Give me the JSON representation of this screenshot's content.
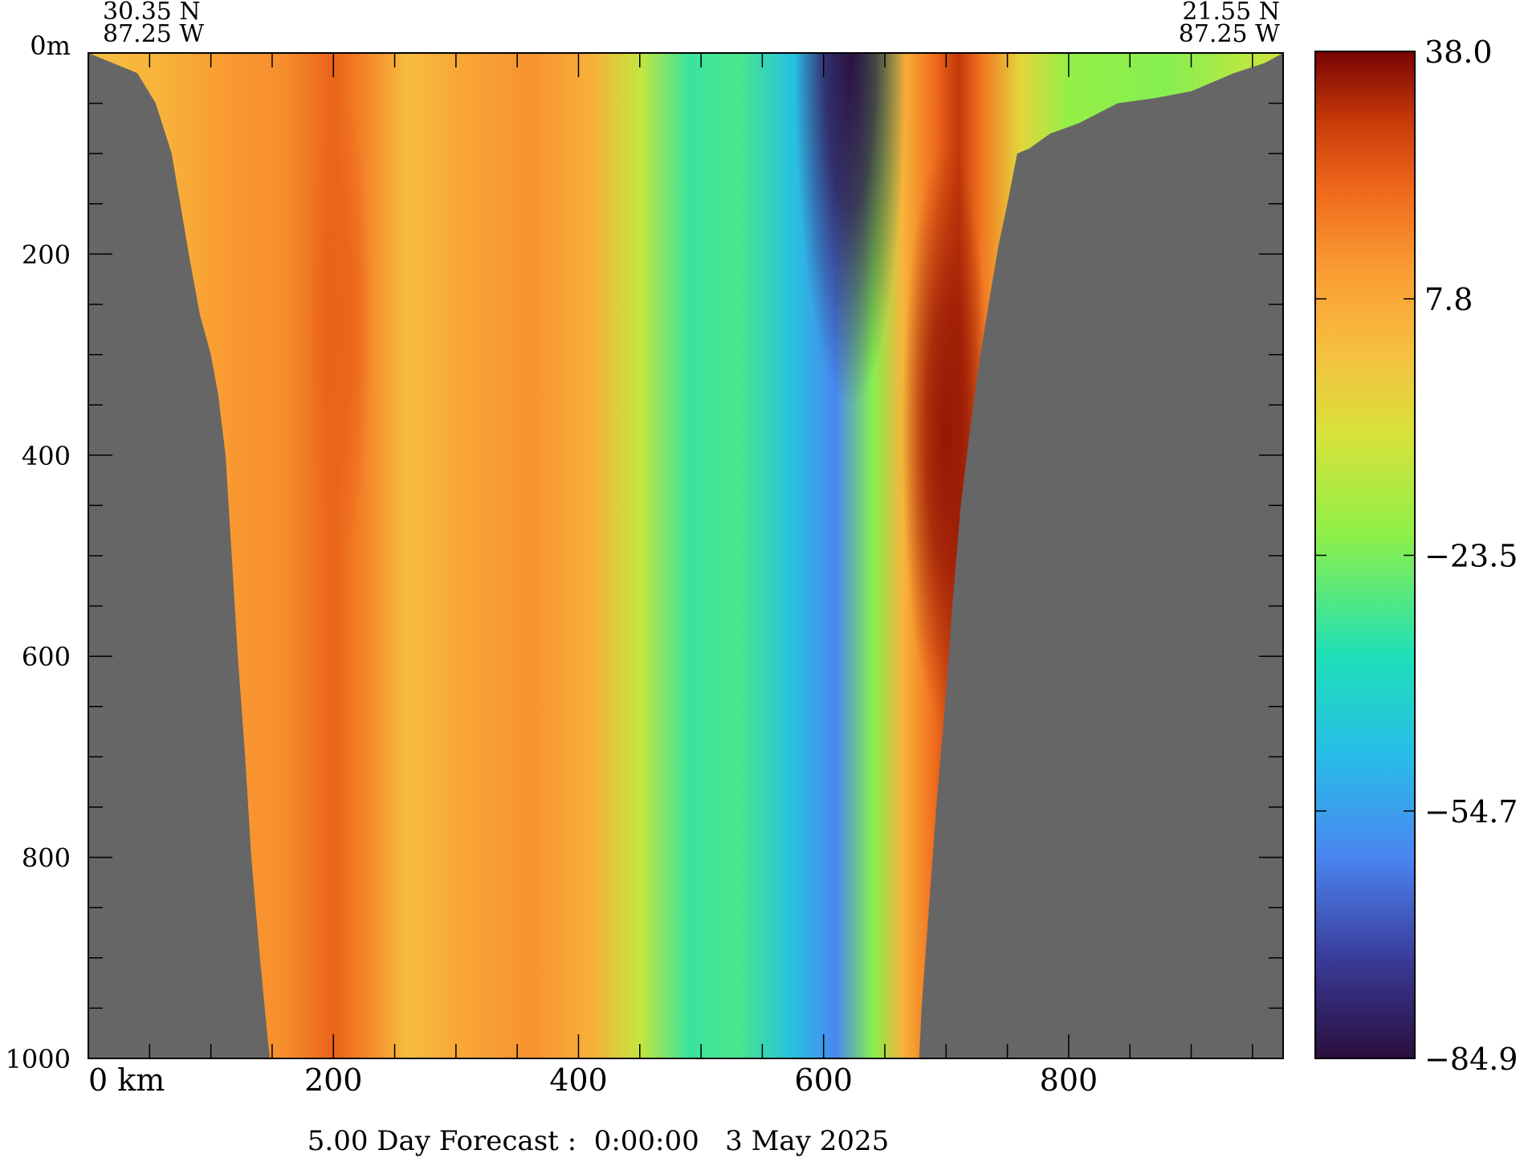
{
  "chart_data": {
    "type": "heatmap",
    "title": "",
    "caption": "5.00 Day Forecast :  0:00:00   3 May 2025",
    "start_location": {
      "lat": "30.35 N",
      "lon": "87.25 W"
    },
    "end_location": {
      "lat": "21.55 N",
      "lon": "87.25 W"
    },
    "x_axis": {
      "range": [
        0,
        975
      ],
      "ticks": [
        0,
        200,
        400,
        600,
        800
      ],
      "tick_labels": [
        "0 km",
        "200",
        "400",
        "600",
        "800"
      ],
      "minor_step": 50
    },
    "y_axis": {
      "range": [
        0,
        1000
      ],
      "ticks": [
        0,
        200,
        400,
        600,
        800,
        1000
      ],
      "tick_labels": [
        "0m",
        "200",
        "400",
        "600",
        "800",
        "1000"
      ],
      "minor_step": 50,
      "inverted": true
    },
    "colorbar": {
      "range": [
        -84.9,
        38.0
      ],
      "labels": [
        "38.0",
        "7.8",
        "-23.5",
        "-54.7",
        "-84.9"
      ],
      "label_values": [
        38.0,
        7.8,
        -23.5,
        -54.7,
        -84.9
      ]
    },
    "land_color": "#666666",
    "bathymetry_left": [
      [
        0,
        0
      ],
      [
        40,
        20
      ],
      [
        55,
        50
      ],
      [
        68,
        100
      ],
      [
        75,
        150
      ],
      [
        82,
        200
      ],
      [
        91,
        260
      ],
      [
        100,
        300
      ],
      [
        106,
        340
      ],
      [
        112,
        400
      ],
      [
        117,
        500
      ],
      [
        122,
        600
      ],
      [
        128,
        700
      ],
      [
        133,
        800
      ],
      [
        140,
        900
      ],
      [
        146,
        975
      ],
      [
        148,
        1000
      ]
    ],
    "bathymetry_right": [
      [
        678,
        1000
      ],
      [
        680,
        950
      ],
      [
        686,
        850
      ],
      [
        692,
        750
      ],
      [
        699,
        650
      ],
      [
        705,
        550
      ],
      [
        712,
        450
      ],
      [
        720,
        370
      ],
      [
        728,
        300
      ],
      [
        736,
        240
      ],
      [
        743,
        190
      ],
      [
        750,
        150
      ],
      [
        758,
        100
      ],
      [
        768,
        95
      ],
      [
        785,
        80
      ],
      [
        808,
        70
      ],
      [
        840,
        50
      ],
      [
        870,
        45
      ],
      [
        900,
        38
      ],
      [
        935,
        20
      ],
      [
        960,
        10
      ],
      [
        975,
        0
      ]
    ],
    "velocity_bands": [
      {
        "x": 0,
        "value": 2
      },
      {
        "x": 60,
        "value": 5
      },
      {
        "x": 115,
        "value": 12
      },
      {
        "x": 160,
        "value": 14
      },
      {
        "x": 200,
        "value": 22
      },
      {
        "x": 225,
        "value": 16
      },
      {
        "x": 260,
        "value": 2
      },
      {
        "x": 300,
        "value": 8
      },
      {
        "x": 360,
        "value": 13
      },
      {
        "x": 410,
        "value": 6
      },
      {
        "x": 450,
        "value": -12
      },
      {
        "x": 490,
        "value": -32
      },
      {
        "x": 530,
        "value": -30
      },
      {
        "x": 575,
        "value": -46
      },
      {
        "x": 610,
        "value": -60
      },
      {
        "x": 640,
        "value": -22
      },
      {
        "x": 665,
        "value": 5
      },
      {
        "x": 690,
        "value": 20
      },
      {
        "x": 710,
        "value": 30
      },
      {
        "x": 730,
        "value": 18
      },
      {
        "x": 760,
        "value": -5
      },
      {
        "x": 800,
        "value": -20
      },
      {
        "x": 880,
        "value": -22
      },
      {
        "x": 975,
        "value": -10
      }
    ],
    "core_features": [
      {
        "x": 622,
        "depth": 0,
        "value": -84
      },
      {
        "x": 700,
        "depth": 380,
        "value": 35
      },
      {
        "x": 205,
        "depth": 270,
        "value": 22
      }
    ]
  }
}
